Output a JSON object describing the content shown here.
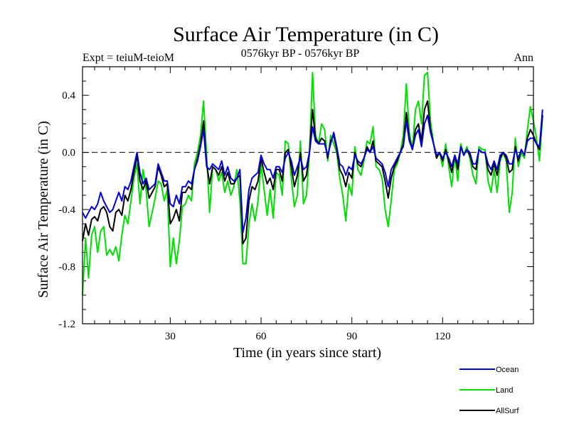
{
  "header": {
    "title": "Surface Air Temperature (in C)",
    "expt": "Expt = teiuM-teioM",
    "period": "0576kyr BP - 0576kyr BP",
    "season": "Ann"
  },
  "chart_data": {
    "type": "line",
    "title": "Surface Air Temperature (in C)",
    "xlabel": "Time (in years since start)",
    "ylabel": "Surface Air Temperature (in C)",
    "xlim": [
      1,
      150
    ],
    "ylim": [
      -1.2,
      0.6
    ],
    "xticks": [
      30,
      60,
      90,
      120
    ],
    "yticks": [
      -1.2,
      -0.8,
      -0.4,
      0.0,
      0.4
    ],
    "xtick_labels": [
      "30",
      "60",
      "90",
      "120"
    ],
    "ytick_labels": [
      "-1.2",
      "-0.8",
      "-0.4",
      "0.0",
      "0.4"
    ],
    "reference_line": 0.0,
    "legend_position": "bottom-right",
    "series": [
      {
        "name": "Land",
        "color": "#00e000",
        "values": [
          -1.0,
          -0.6,
          -0.88,
          -0.58,
          -0.52,
          -0.7,
          -0.55,
          -0.52,
          -0.72,
          -0.68,
          -0.72,
          -0.66,
          -0.76,
          -0.58,
          -0.44,
          -0.5,
          -0.34,
          -0.18,
          -0.08,
          -0.36,
          -0.12,
          -0.26,
          -0.52,
          -0.42,
          -0.32,
          -0.2,
          -0.22,
          -0.34,
          -0.26,
          -0.8,
          -0.6,
          -0.78,
          -0.62,
          -0.38,
          -0.36,
          -0.3,
          -0.34,
          -0.08,
          0.0,
          0.12,
          0.36,
          -0.02,
          -0.42,
          -0.1,
          -0.12,
          -0.2,
          -0.14,
          -0.28,
          -0.2,
          -0.3,
          -0.24,
          -0.12,
          -0.34,
          -0.78,
          -0.78,
          -0.5,
          -0.36,
          -0.48,
          -0.34,
          -0.08,
          -0.26,
          -0.44,
          -0.26,
          -0.46,
          -0.14,
          -0.16,
          -0.3,
          0.08,
          0.06,
          -0.18,
          -0.38,
          -0.3,
          0.08,
          -0.36,
          -0.3,
          0.0,
          0.56,
          0.12,
          0.06,
          0.2,
          0.16,
          -0.06,
          0.12,
          0.06,
          0.0,
          -0.18,
          -0.3,
          -0.48,
          -0.22,
          -0.3,
          0.04,
          -0.12,
          -0.16,
          -0.06,
          0.08,
          0.06,
          0.18,
          -0.1,
          -0.12,
          -0.18,
          -0.4,
          -0.52,
          -0.34,
          -0.12,
          -0.08,
          0.0,
          0.12,
          0.48,
          0.14,
          0.02,
          0.3,
          0.36,
          0.2,
          0.54,
          0.56,
          0.22,
          0.06,
          -0.04,
          0.0,
          -0.1,
          0.06,
          -0.1,
          -0.24,
          -0.02,
          -0.2,
          0.06,
          -0.02,
          0.04,
          -0.04,
          -0.16,
          -0.22,
          0.04,
          0.02,
          0.02,
          -0.2,
          -0.28,
          -0.12,
          -0.28,
          -0.06,
          0.0,
          -0.06,
          -0.42,
          -0.28,
          0.1,
          -0.1,
          0.0,
          -0.04,
          0.16,
          0.32,
          0.22,
          0.1,
          -0.06,
          0.26
        ]
      },
      {
        "name": "AllSurf",
        "color": "#000000",
        "values": [
          -0.62,
          -0.5,
          -0.58,
          -0.47,
          -0.45,
          -0.48,
          -0.4,
          -0.38,
          -0.42,
          -0.52,
          -0.55,
          -0.42,
          -0.4,
          -0.44,
          -0.3,
          -0.34,
          -0.26,
          -0.14,
          -0.02,
          -0.2,
          -0.26,
          -0.2,
          -0.32,
          -0.28,
          -0.24,
          -0.1,
          -0.16,
          -0.24,
          -0.22,
          -0.5,
          -0.46,
          -0.4,
          -0.48,
          -0.28,
          -0.28,
          -0.24,
          -0.26,
          -0.12,
          -0.04,
          0.06,
          0.22,
          -0.08,
          -0.22,
          -0.1,
          -0.12,
          -0.16,
          -0.1,
          -0.2,
          -0.14,
          -0.22,
          -0.22,
          -0.18,
          -0.16,
          -0.64,
          -0.6,
          -0.34,
          -0.24,
          -0.26,
          -0.2,
          -0.04,
          -0.14,
          -0.22,
          -0.18,
          -0.26,
          -0.12,
          -0.12,
          -0.2,
          0.0,
          0.02,
          -0.1,
          -0.24,
          -0.16,
          0.0,
          -0.2,
          -0.16,
          0.0,
          0.3,
          0.1,
          0.06,
          0.1,
          0.08,
          -0.04,
          0.08,
          0.12,
          0.02,
          -0.12,
          -0.16,
          -0.24,
          -0.14,
          -0.18,
          0.0,
          -0.08,
          -0.1,
          -0.04,
          0.04,
          0.0,
          0.08,
          -0.06,
          -0.08,
          -0.1,
          -0.2,
          -0.32,
          -0.18,
          -0.1,
          -0.06,
          0.0,
          0.06,
          0.28,
          0.1,
          0.02,
          0.16,
          0.2,
          0.08,
          0.3,
          0.36,
          0.16,
          0.06,
          -0.04,
          0.0,
          -0.06,
          0.02,
          -0.06,
          -0.14,
          -0.02,
          -0.12,
          0.04,
          -0.02,
          0.02,
          -0.02,
          -0.1,
          -0.12,
          0.02,
          0.0,
          0.0,
          -0.12,
          -0.16,
          -0.08,
          -0.16,
          -0.04,
          0.0,
          -0.04,
          -0.14,
          -0.12,
          0.04,
          -0.06,
          0.02,
          -0.02,
          0.1,
          0.16,
          0.12,
          0.06,
          0.02,
          0.26
        ]
      },
      {
        "name": "Ocean",
        "color": "#0000dd",
        "values": [
          -0.42,
          -0.46,
          -0.42,
          -0.38,
          -0.4,
          -0.36,
          -0.28,
          -0.34,
          -0.38,
          -0.42,
          -0.4,
          -0.34,
          -0.28,
          -0.34,
          -0.24,
          -0.26,
          -0.2,
          -0.1,
          0.0,
          -0.14,
          -0.22,
          -0.18,
          -0.26,
          -0.24,
          -0.22,
          -0.08,
          -0.14,
          -0.2,
          -0.2,
          -0.36,
          -0.38,
          -0.3,
          -0.36,
          -0.24,
          -0.24,
          -0.2,
          -0.22,
          -0.12,
          -0.06,
          0.04,
          0.16,
          -0.1,
          -0.12,
          -0.08,
          -0.1,
          -0.12,
          -0.06,
          -0.16,
          -0.1,
          -0.18,
          -0.2,
          -0.18,
          -0.12,
          -0.56,
          -0.46,
          -0.26,
          -0.18,
          -0.16,
          -0.14,
          -0.02,
          -0.08,
          -0.12,
          -0.12,
          -0.18,
          -0.1,
          -0.1,
          -0.14,
          -0.04,
          0.0,
          -0.06,
          -0.16,
          -0.1,
          -0.04,
          -0.12,
          -0.1,
          0.0,
          0.18,
          0.08,
          0.06,
          0.06,
          0.06,
          -0.02,
          0.06,
          0.14,
          0.04,
          -0.08,
          -0.1,
          -0.16,
          -0.1,
          -0.12,
          -0.02,
          -0.06,
          -0.08,
          -0.04,
          0.02,
          0.0,
          0.04,
          -0.04,
          -0.06,
          -0.08,
          -0.14,
          -0.24,
          -0.12,
          -0.08,
          -0.04,
          0.0,
          0.04,
          0.22,
          0.08,
          0.02,
          0.12,
          0.16,
          0.04,
          0.2,
          0.26,
          0.14,
          0.06,
          -0.02,
          0.0,
          -0.04,
          0.0,
          -0.04,
          -0.1,
          -0.02,
          -0.08,
          0.04,
          -0.02,
          0.02,
          0.0,
          -0.08,
          -0.08,
          0.02,
          0.0,
          0.0,
          -0.08,
          -0.12,
          -0.06,
          -0.12,
          -0.02,
          0.0,
          -0.02,
          -0.08,
          -0.08,
          0.02,
          -0.04,
          0.02,
          -0.02,
          0.08,
          0.1,
          0.1,
          0.06,
          0.04,
          0.3
        ]
      }
    ]
  }
}
